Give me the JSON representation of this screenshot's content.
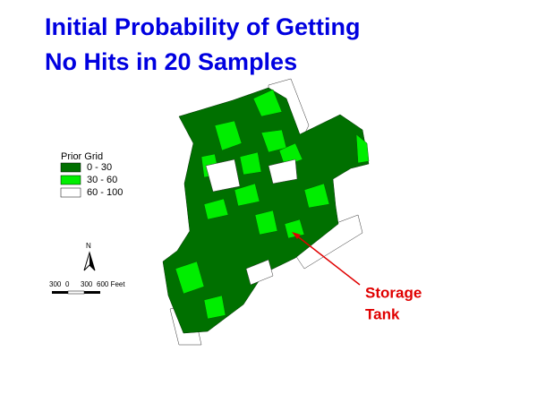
{
  "title": {
    "lines": [
      "Initial Probability of Getting",
      "No Hits in 20 Samples"
    ]
  },
  "legend": {
    "title": "Prior Grid",
    "items": [
      {
        "label": "0 - 30",
        "color": "#007000"
      },
      {
        "label": "30 - 60",
        "color": "#00ee00"
      },
      {
        "label": "60 - 100",
        "color": "#ffffff"
      }
    ]
  },
  "north_arrow": {
    "label": "N"
  },
  "scale_bar": {
    "labels": [
      "300",
      "0",
      "300",
      "600 Feet"
    ]
  },
  "annotation": {
    "lines": [
      "Storage",
      "Tank"
    ]
  }
}
